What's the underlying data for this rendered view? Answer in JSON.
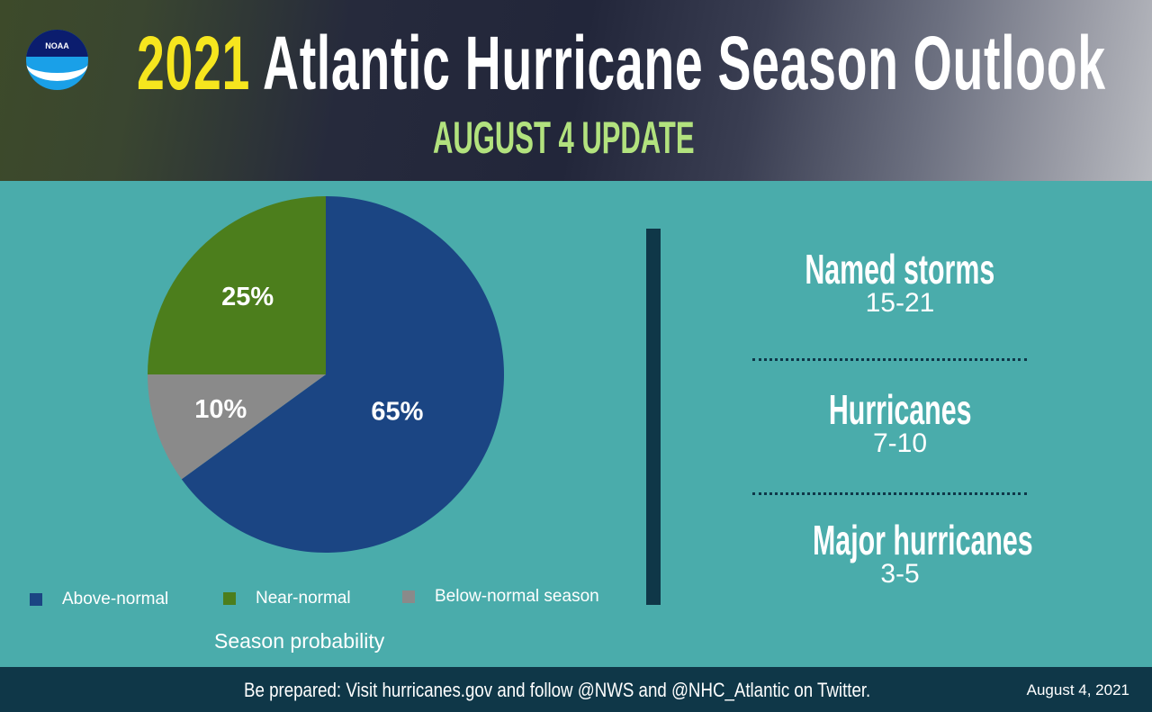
{
  "header": {
    "logo_text": "NOAA",
    "title_year": "2021",
    "title_rest": "Atlantic Hurricane Season Outlook",
    "subtitle": "AUGUST 4 UPDATE"
  },
  "chart_data": {
    "type": "pie",
    "title": "Season probability",
    "start_angle": "12 o'clock, clockwise",
    "slices": [
      {
        "name": "Above-normal",
        "value": 65,
        "label": "65%",
        "color": "#1b4583"
      },
      {
        "name": "Below-normal season",
        "value": 10,
        "label": "10%",
        "color": "#8a8a8a"
      },
      {
        "name": "Near-normal",
        "value": 25,
        "label": "25%",
        "color": "#4c7e1c"
      }
    ],
    "legend": [
      {
        "label": "Above-normal",
        "color": "#1b4583"
      },
      {
        "label": "Near-normal",
        "color": "#4c7e1c"
      },
      {
        "label": "Below-normal season",
        "color": "#8a8a8a"
      }
    ],
    "legend_placement": "bottom"
  },
  "stats": [
    {
      "label": "Named storms",
      "value": "15-21"
    },
    {
      "label": "Hurricanes",
      "value": "7-10"
    },
    {
      "label": "Major hurricanes",
      "value": "3-5"
    }
  ],
  "footer": {
    "message": "Be prepared: Visit hurricanes.gov and follow @NWS and @NHC_Atlantic on Twitter.",
    "date": "August 4, 2021"
  },
  "colors": {
    "background": "#4aacab",
    "footer": "#0f3748",
    "year": "#f6e61e",
    "subtitle": "#b2e27e"
  }
}
